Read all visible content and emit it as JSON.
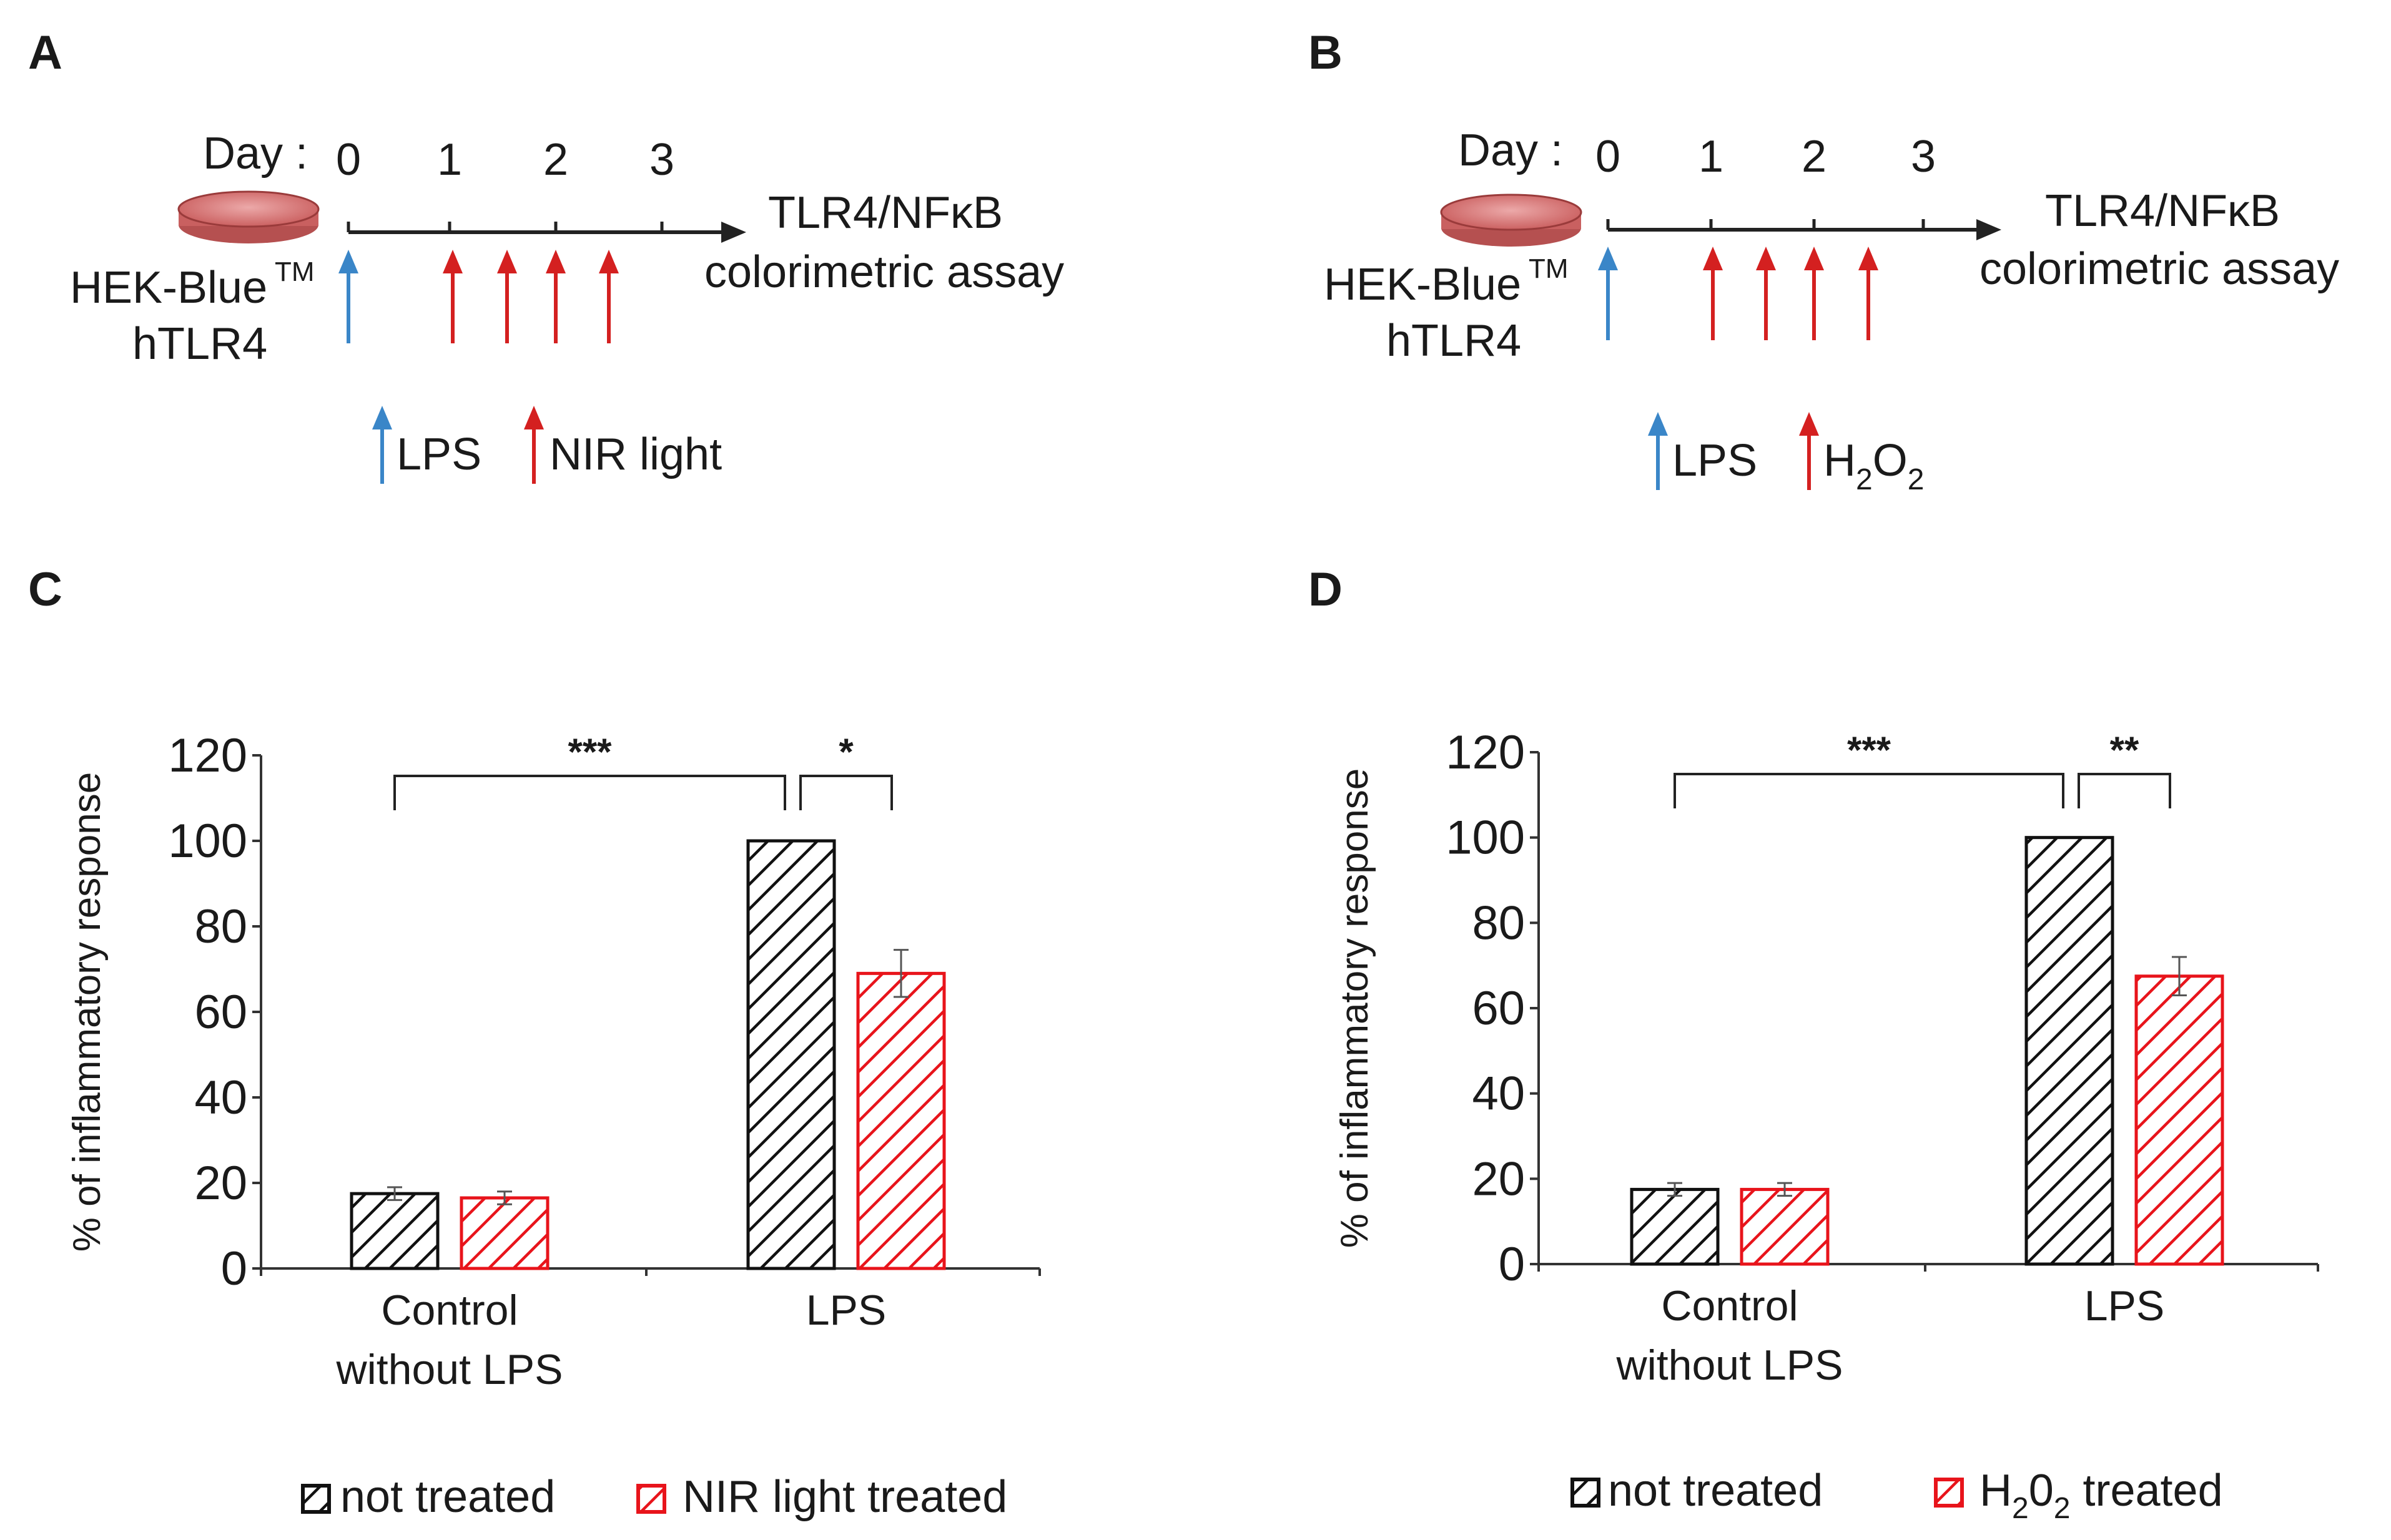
{
  "colors": {
    "black_hatch": "#111111",
    "red_hatch": "#e8141b",
    "lps_arrow": "#3a86c8",
    "treatment_arrow": "#d42020",
    "dish": "#d56a6a"
  },
  "panels": {
    "A": {
      "letter": "A",
      "day_label": "Day :",
      "days": [
        "0",
        "1",
        "2",
        "3"
      ],
      "cell_line": "HEK-Blue",
      "cell_sup": "TM",
      "cell_line2": "hTLR4",
      "assay_line1": "TLR4/NFκB",
      "assay_line2": "colorimetric assay",
      "legend_lps": "LPS",
      "legend_treatment": "NIR light"
    },
    "B": {
      "letter": "B",
      "day_label": "Day :",
      "days": [
        "0",
        "1",
        "2",
        "3"
      ],
      "cell_line": "HEK-Blue",
      "cell_sup": "TM",
      "cell_line2": "hTLR4",
      "assay_line1": "TLR4/NFκB",
      "assay_line2": "colorimetric assay",
      "legend_lps": "LPS",
      "legend_treatment_main": "H",
      "legend_treatment_sub1": "2",
      "legend_treatment_mid": "O",
      "legend_treatment_sub2": "2"
    },
    "C": {
      "letter": "C",
      "legend_black": "not treated",
      "legend_red": "NIR light treated"
    },
    "D": {
      "letter": "D",
      "legend_black": "not treated",
      "legend_red_main": "H",
      "legend_red_sub1": "2",
      "legend_red_mid": "0",
      "legend_red_sub2": "2",
      "legend_red_tail": " treated"
    }
  },
  "chart_data": [
    {
      "type": "bar",
      "panel": "C",
      "ylabel": "% of inflammatory response",
      "ylim": [
        0,
        120
      ],
      "yticks": [
        "0",
        "20",
        "40",
        "60",
        "80",
        "100",
        "120"
      ],
      "categories": [
        "Control\nwithout LPS",
        "LPS"
      ],
      "category_lines": [
        [
          "Control",
          "without LPS"
        ],
        [
          "LPS"
        ]
      ],
      "series": [
        {
          "name": "not treated",
          "values": [
            17.5,
            100
          ],
          "errors": [
            1.5,
            0
          ]
        },
        {
          "name": "NIR light treated",
          "values": [
            16.5,
            69
          ],
          "errors": [
            1.5,
            5.5
          ]
        }
      ],
      "significance": [
        {
          "label": "***",
          "between": "Control not treated vs LPS not treated"
        },
        {
          "label": "*",
          "between": "LPS not treated vs LPS NIR light treated"
        }
      ]
    },
    {
      "type": "bar",
      "panel": "D",
      "ylabel": "% of inflammatory response",
      "ylim": [
        0,
        120
      ],
      "yticks": [
        "0",
        "20",
        "40",
        "60",
        "80",
        "100",
        "120"
      ],
      "categories": [
        "Control\nwithout LPS",
        "LPS"
      ],
      "category_lines": [
        [
          "Control",
          "without LPS"
        ],
        [
          "LPS"
        ]
      ],
      "series": [
        {
          "name": "not treated",
          "values": [
            17.5,
            100
          ],
          "errors": [
            1.5,
            0
          ]
        },
        {
          "name": "H2O2 treated",
          "values": [
            17.5,
            67.5
          ],
          "errors": [
            1.5,
            4.5
          ]
        }
      ],
      "significance": [
        {
          "label": "***",
          "between": "Control not treated vs LPS not treated"
        },
        {
          "label": "**",
          "between": "LPS not treated vs LPS H2O2 treated"
        }
      ]
    }
  ]
}
